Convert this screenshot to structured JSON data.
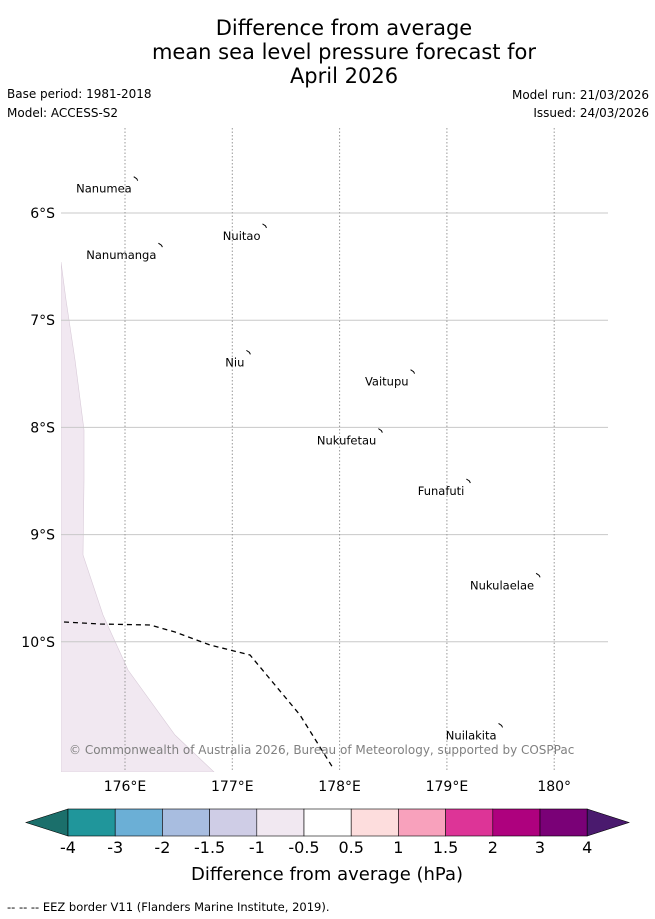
{
  "title": {
    "line1": "Difference from average",
    "line2": "mean sea level pressure forecast for",
    "line3": "April 2026"
  },
  "meta": {
    "base_period": "Base period: 1981-2018",
    "model": "Model: ACCESS-S2",
    "model_run": "Model run: 21/03/2026",
    "issued": "Issued: 24/03/2026"
  },
  "map": {
    "lat_ticks": [
      {
        "label": "6°S",
        "value": -6
      },
      {
        "label": "7°S",
        "value": -7
      },
      {
        "label": "8°S",
        "value": -8
      },
      {
        "label": "9°S",
        "value": -9
      },
      {
        "label": "10°S",
        "value": -10
      }
    ],
    "lon_ticks": [
      {
        "label": "176°E",
        "value": 176
      },
      {
        "label": "177°E",
        "value": 177
      },
      {
        "label": "178°E",
        "value": 178
      },
      {
        "label": "179°E",
        "value": 179
      },
      {
        "label": "180°",
        "value": 180
      }
    ],
    "islands": [
      {
        "name": "Nanumea",
        "lon": 176.1,
        "lat": -5.68
      },
      {
        "name": "Nuitao",
        "lon": 177.3,
        "lat": -6.12
      },
      {
        "name": "Nanumanga",
        "lon": 176.33,
        "lat": -6.3
      },
      {
        "name": "Niu",
        "lon": 177.15,
        "lat": -7.3
      },
      {
        "name": "Vaitupu",
        "lon": 178.68,
        "lat": -7.48
      },
      {
        "name": "Nukufetau",
        "lon": 178.38,
        "lat": -8.03
      },
      {
        "name": "Funafuti",
        "lon": 179.2,
        "lat": -8.5
      },
      {
        "name": "Nukulaelae",
        "lon": 179.85,
        "lat": -9.38
      },
      {
        "name": "Nuilakita",
        "lon": 179.5,
        "lat": -10.78
      }
    ],
    "copyright": "© Commonwealth of Australia 2026, Bureau of Meteorology, supported by COSPPac",
    "anomaly_color": "#f1e8f1"
  },
  "colorbar": {
    "title": "Difference from average (hPa)",
    "ticks": [
      "-4",
      "-3",
      "-2",
      "-1.5",
      "-1",
      "-0.5",
      "0.5",
      "1",
      "1.5",
      "2",
      "3",
      "4"
    ],
    "under_color": "#1b6f6b",
    "over_color": "#4a1a6e",
    "colors": [
      "#20969b",
      "#6bafd6",
      "#a8bde0",
      "#cfcde6",
      "#f1e8f1",
      "#ffffff",
      "#fddddd",
      "#f8a1bc",
      "#dd3497",
      "#ae017e",
      "#7a0177"
    ]
  },
  "legend": {
    "eez_label": "--  --  -- EEZ border V11 (Flanders Marine Institute, 2019)."
  }
}
